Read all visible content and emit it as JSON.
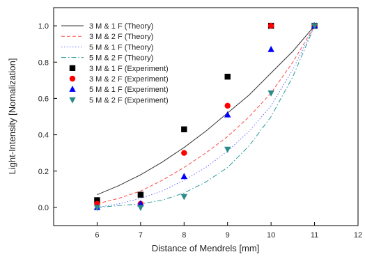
{
  "chart_data": {
    "type": "scatter",
    "title": "",
    "xlabel": "Distance of Mendrels [mm]",
    "ylabel": "Light-Intensity [Nomalization]",
    "xlim": [
      5,
      12
    ],
    "ylim": [
      -0.1,
      1.1
    ],
    "xticks": [
      6,
      7,
      8,
      9,
      10,
      11,
      12
    ],
    "yticks": [
      0.0,
      0.2,
      0.4,
      0.6,
      0.8,
      1.0
    ],
    "xtick_labels": [
      "6",
      "7",
      "8",
      "9",
      "10",
      "11",
      "12"
    ],
    "ytick_labels": [
      "0.0",
      "0.2",
      "0.4",
      "0.6",
      "0.8",
      "1.0"
    ],
    "grid": false,
    "legend_position": "top-left",
    "series": [
      {
        "name": "3 M & 1 F (Theory)",
        "kind": "line",
        "color": "#333333",
        "dash": "solid",
        "x": [
          6,
          6.5,
          7,
          7.5,
          8,
          8.5,
          9,
          9.5,
          10,
          10.5,
          11
        ],
        "y": [
          0.07,
          0.12,
          0.18,
          0.25,
          0.33,
          0.42,
          0.52,
          0.62,
          0.74,
          0.86,
          1.0
        ]
      },
      {
        "name": "3 M & 2 F (Theory)",
        "kind": "line",
        "color": "#ff4a4a",
        "dash": "dashed",
        "x": [
          6,
          6.5,
          7,
          7.5,
          8,
          8.5,
          9,
          9.5,
          10,
          10.5,
          11
        ],
        "y": [
          0.02,
          0.05,
          0.09,
          0.15,
          0.22,
          0.3,
          0.39,
          0.5,
          0.63,
          0.8,
          1.0
        ]
      },
      {
        "name": "5 M & 1 F (Theory)",
        "kind": "line",
        "color": "#6a6aff",
        "dash": "dotted",
        "x": [
          6,
          6.5,
          7,
          7.5,
          8,
          8.5,
          9,
          9.5,
          10,
          10.5,
          11
        ],
        "y": [
          0.0,
          0.02,
          0.05,
          0.09,
          0.15,
          0.22,
          0.31,
          0.42,
          0.56,
          0.76,
          1.0
        ]
      },
      {
        "name": "5 M & 2 F (Theory)",
        "kind": "line",
        "color": "#2a9a9a",
        "dash": "dashdot",
        "x": [
          6,
          6.5,
          7,
          7.5,
          8,
          8.5,
          9,
          9.5,
          10,
          10.5,
          11
        ],
        "y": [
          0.0,
          0.01,
          0.02,
          0.04,
          0.08,
          0.14,
          0.22,
          0.34,
          0.5,
          0.72,
          1.0
        ]
      },
      {
        "name": "3 M & 1 F (Experiment)",
        "kind": "points",
        "marker": "square",
        "color": "#000000",
        "x": [
          6,
          7,
          8,
          9,
          10,
          11
        ],
        "y": [
          0.04,
          0.07,
          0.43,
          0.72,
          1.0,
          1.0
        ]
      },
      {
        "name": "3 M & 2 F (Experiment)",
        "kind": "points",
        "marker": "circle",
        "color": "#ff0000",
        "x": [
          6,
          7,
          8,
          9,
          10,
          11
        ],
        "y": [
          0.02,
          0.02,
          0.3,
          0.56,
          1.0,
          1.0
        ]
      },
      {
        "name": "5 M & 1 F (Experiment)",
        "kind": "points",
        "marker": "triangle-up",
        "color": "#0000ff",
        "x": [
          6,
          7,
          8,
          9,
          10,
          11
        ],
        "y": [
          0.0,
          0.02,
          0.17,
          0.51,
          0.87,
          1.0
        ]
      },
      {
        "name": "5 M & 2 F (Experiment)",
        "kind": "points",
        "marker": "triangle-down",
        "color": "#2a8a8a",
        "x": [
          6,
          7,
          8,
          9,
          10,
          11
        ],
        "y": [
          0.0,
          0.0,
          0.06,
          0.32,
          0.63,
          1.0
        ]
      }
    ]
  }
}
